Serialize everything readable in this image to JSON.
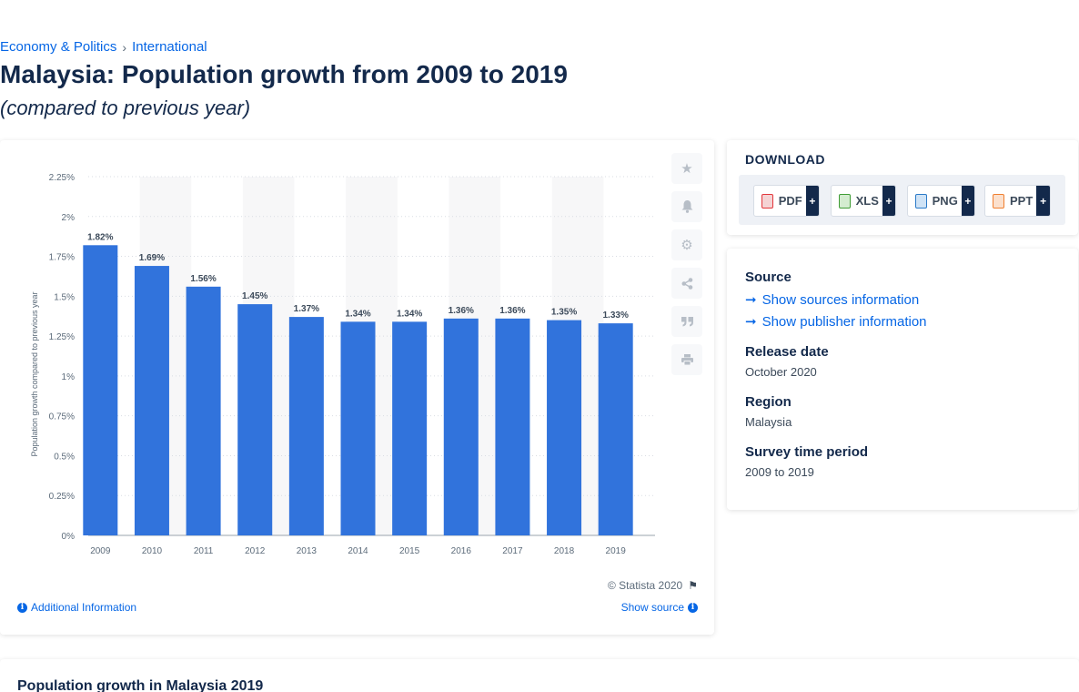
{
  "breadcrumb": {
    "items": [
      "Economy & Politics",
      "International"
    ],
    "separator": "›"
  },
  "header": {
    "title": "Malaysia: Population growth from 2009 to 2019",
    "subtitle": "(compared to previous year)"
  },
  "chart_data": {
    "type": "bar",
    "categories": [
      "2009",
      "2010",
      "2011",
      "2012",
      "2013",
      "2014",
      "2015",
      "2016",
      "2017",
      "2018",
      "2019"
    ],
    "values": [
      1.82,
      1.69,
      1.56,
      1.45,
      1.37,
      1.34,
      1.34,
      1.36,
      1.36,
      1.35,
      1.33
    ],
    "value_labels": [
      "1.82%",
      "1.69%",
      "1.56%",
      "1.45%",
      "1.37%",
      "1.34%",
      "1.34%",
      "1.36%",
      "1.36%",
      "1.35%",
      "1.33%"
    ],
    "ylabel": "Population growth compared to previous year",
    "ylim": [
      0,
      2.25
    ],
    "yticks": [
      0,
      0.25,
      0.5,
      0.75,
      1,
      1.25,
      1.5,
      1.75,
      2,
      2.25
    ],
    "ytick_labels": [
      "0%",
      "0.25%",
      "0.5%",
      "0.75%",
      "1%",
      "1.25%",
      "1.5%",
      "1.75%",
      "2%",
      "2.25%"
    ],
    "bar_color": "#3173dc",
    "grid": true
  },
  "chart_footer": {
    "copyright": "© Statista 2020",
    "additional_info": "Additional Information",
    "show_source": "Show source"
  },
  "tools": [
    "star-icon",
    "bell-icon",
    "gear-icon",
    "share-icon",
    "quote-icon",
    "print-icon"
  ],
  "download": {
    "title": "DOWNLOAD",
    "buttons": [
      {
        "label": "PDF",
        "color": "#e2363b"
      },
      {
        "label": "XLS",
        "color": "#3f9c35"
      },
      {
        "label": "PNG",
        "color": "#2a7ac8"
      },
      {
        "label": "PPT",
        "color": "#f07f2f"
      }
    ],
    "plus": "+"
  },
  "info": {
    "source_heading": "Source",
    "show_sources": "Show sources information",
    "show_publisher": "Show publisher information",
    "release_heading": "Release date",
    "release_value": "October 2020",
    "region_heading": "Region",
    "region_value": "Malaysia",
    "survey_heading": "Survey time period",
    "survey_value": "2009 to 2019"
  },
  "bottom": {
    "title": "Population growth in Malaysia 2019"
  }
}
